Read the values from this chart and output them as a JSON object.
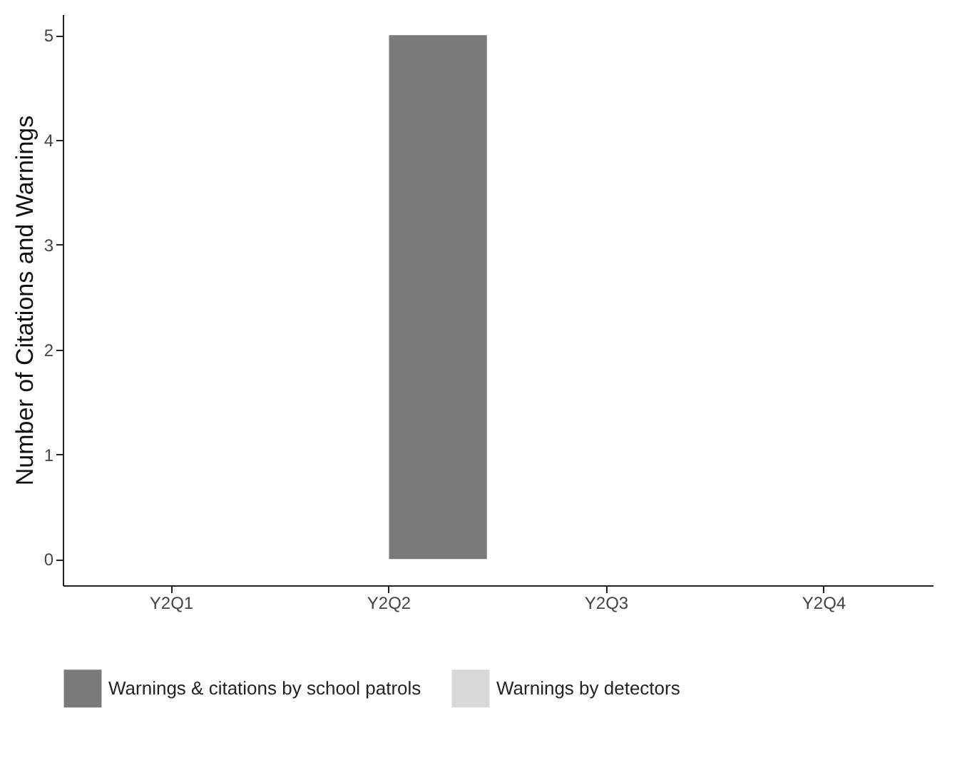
{
  "chart_data": {
    "type": "bar",
    "ylabel": "Number of Citations and Warnings",
    "categories": [
      "Y2Q1",
      "Y2Q2",
      "Y2Q3",
      "Y2Q4"
    ],
    "series": [
      {
        "name": "Warnings & citations by school patrols",
        "color": "#7a7a7a",
        "values": [
          0,
          5,
          0,
          0
        ]
      },
      {
        "name": "Warnings by detectors",
        "color": "#d9d9d9",
        "values": [
          0,
          0,
          0,
          0
        ]
      }
    ],
    "ylim": [
      -0.25,
      5.2
    ],
    "yticks": [
      0,
      1,
      2,
      3,
      4,
      5
    ],
    "grid": false,
    "legend": "bottom"
  }
}
